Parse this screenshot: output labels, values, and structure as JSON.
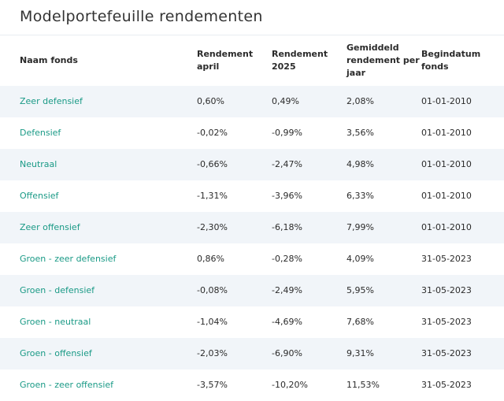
{
  "title": "Modelportefeuille rendementen",
  "colors": {
    "accent": "#1a9a86",
    "row_stripe": "#f1f5f9"
  },
  "table": {
    "headers": [
      "Naam fonds",
      "Rendement april",
      "Rendement 2025",
      "Gemiddeld rendement per jaar",
      "Begindatum fonds"
    ],
    "rows": [
      [
        "Zeer defensief",
        "0,60%",
        "0,49%",
        "2,08%",
        "01-01-2010"
      ],
      [
        "Defensief",
        "-0,02%",
        "-0,99%",
        "3,56%",
        "01-01-2010"
      ],
      [
        "Neutraal",
        "-0,66%",
        "-2,47%",
        "4,98%",
        "01-01-2010"
      ],
      [
        "Offensief",
        "-1,31%",
        "-3,96%",
        "6,33%",
        "01-01-2010"
      ],
      [
        "Zeer offensief",
        "-2,30%",
        "-6,18%",
        "7,99%",
        "01-01-2010"
      ],
      [
        "Groen - zeer defensief",
        "0,86%",
        "-0,28%",
        "4,09%",
        "31-05-2023"
      ],
      [
        "Groen - defensief",
        "-0,08%",
        "-2,49%",
        "5,95%",
        "31-05-2023"
      ],
      [
        "Groen - neutraal",
        "-1,04%",
        "-4,69%",
        "7,68%",
        "31-05-2023"
      ],
      [
        "Groen - offensief",
        "-2,03%",
        "-6,90%",
        "9,31%",
        "31-05-2023"
      ],
      [
        "Groen - zeer offensief",
        "-3,57%",
        "-10,20%",
        "11,53%",
        "31-05-2023"
      ]
    ]
  }
}
